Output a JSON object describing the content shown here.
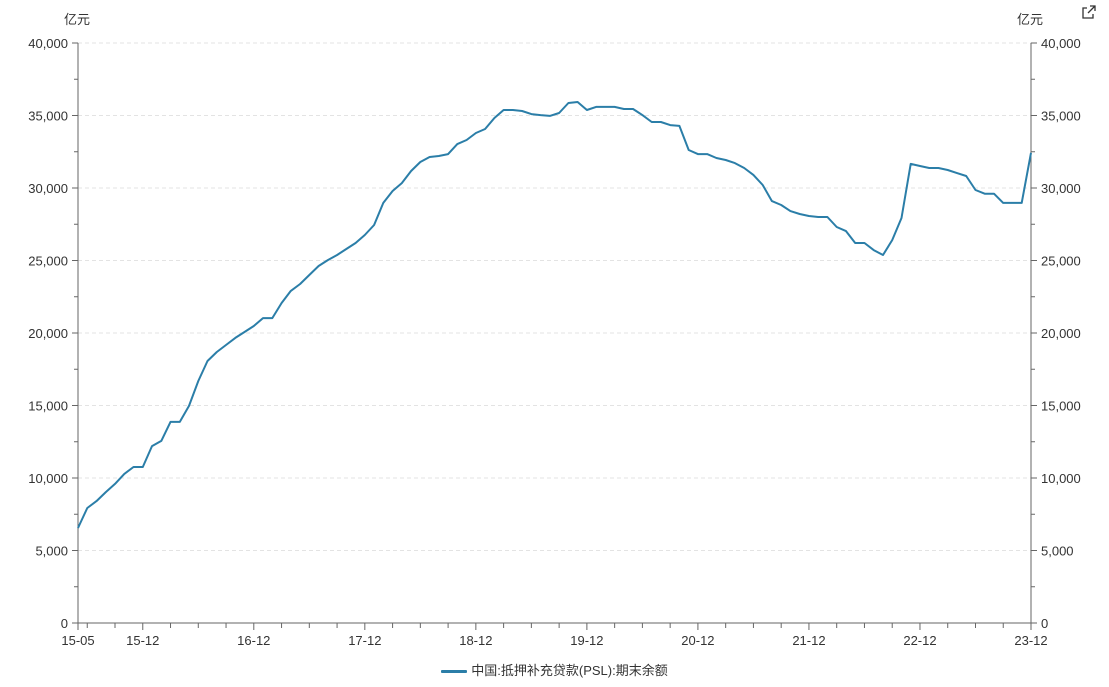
{
  "units": {
    "left": "亿元",
    "right": "亿元"
  },
  "export_icon": "external-link-icon",
  "chart_data": {
    "type": "line",
    "title": "",
    "xlabel": "",
    "ylabel": "亿元",
    "ylim": [
      0,
      40000
    ],
    "y_ticks": [
      "0",
      "5,000",
      "10,000",
      "15,000",
      "20,000",
      "25,000",
      "30,000",
      "35,000",
      "40,000"
    ],
    "x_ticks": [
      "15-05",
      "15-12",
      "16-12",
      "17-12",
      "18-12",
      "19-12",
      "20-12",
      "21-12",
      "22-12",
      "23-12"
    ],
    "x_start": "2015-05",
    "x_end": "2023-12",
    "x_frequency": "monthly",
    "grid": "horizontal dashed",
    "legend_position": "bottom",
    "color": "#2b7ea8",
    "series": [
      {
        "name": "中国:抵押补充贷款(PSL):期末余额",
        "values": [
          6550,
          7930,
          8410,
          9030,
          9590,
          10280,
          10760,
          10760,
          12200,
          12560,
          13870,
          13870,
          14970,
          16690,
          18070,
          18690,
          19170,
          19660,
          20070,
          20480,
          21030,
          21030,
          22070,
          22900,
          23380,
          24000,
          24620,
          25030,
          25380,
          25790,
          26210,
          26760,
          27450,
          28970,
          29790,
          30340,
          31170,
          31790,
          32140,
          32210,
          32340,
          33030,
          33310,
          33790,
          34070,
          34830,
          35380,
          35380,
          35310,
          35100,
          35030,
          34970,
          35170,
          35860,
          35930,
          35380,
          35590,
          35590,
          35590,
          35450,
          35450,
          35030,
          34550,
          34550,
          34340,
          34280,
          32620,
          32340,
          32340,
          32070,
          31930,
          31720,
          31380,
          30900,
          30210,
          29100,
          28830,
          28410,
          28210,
          28070,
          28000,
          28000,
          27310,
          27030,
          26210,
          26210,
          25720,
          25380,
          26410,
          27930,
          31660,
          31520,
          31380,
          31380,
          31240,
          31030,
          30830,
          29860,
          29610,
          29610,
          28970,
          28970,
          28970,
          32430
        ]
      }
    ]
  }
}
